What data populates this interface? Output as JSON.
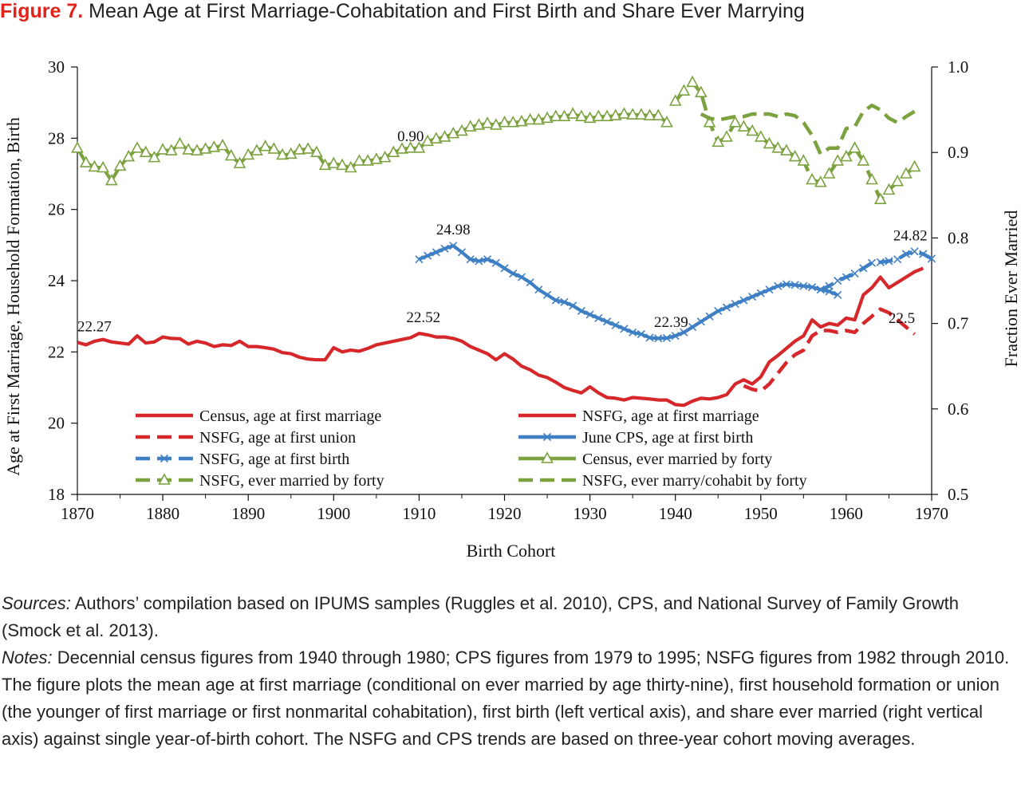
{
  "figure": {
    "label": "Figure 7.",
    "title": "Mean Age at First Marriage-Cohabitation and First Birth and Share Ever Marrying"
  },
  "chart_data": {
    "type": "line",
    "xlabel": "Birth Cohort",
    "ylabel_left": "Age at First Marriage, Household Formation, Birth",
    "ylabel_right": "Fraction Ever Married",
    "xlim": [
      1870,
      1970
    ],
    "ylim_left": [
      18,
      30
    ],
    "ylim_right": [
      0.5,
      1.0
    ],
    "x_ticks": [
      1870,
      1880,
      1890,
      1900,
      1910,
      1920,
      1930,
      1940,
      1950,
      1960,
      1970
    ],
    "y_ticks_left": [
      18,
      20,
      22,
      24,
      26,
      28,
      30
    ],
    "y_ticks_right": [
      "0.5",
      "0.6",
      "0.7",
      "0.8",
      "0.9",
      "1.0"
    ],
    "grid": false,
    "legend_position": "bottom-center",
    "annotations": [
      {
        "text": "22.27",
        "x": 1872,
        "y": 22.27,
        "axis": "left"
      },
      {
        "text": "22.52",
        "x": 1910.5,
        "y": 22.52,
        "axis": "left"
      },
      {
        "text": "24.98",
        "x": 1914,
        "y": 24.98,
        "axis": "left"
      },
      {
        "text": "22.39",
        "x": 1939.5,
        "y": 22.39,
        "axis": "left"
      },
      {
        "text": "24.82",
        "x": 1967.5,
        "y": 24.82,
        "axis": "left"
      },
      {
        "text": "22.5",
        "x": 1966.5,
        "y": 22.5,
        "axis": "left"
      },
      {
        "text": "0.90",
        "x": 1909,
        "y": 0.9,
        "axis": "right"
      }
    ],
    "series": [
      {
        "name": "Census, age at first marriage",
        "axis": "left",
        "color": "#d6282b",
        "style": "solid",
        "marker": "none",
        "x": [
          1870,
          1871,
          1872,
          1873,
          1874,
          1875,
          1876,
          1877,
          1878,
          1879,
          1880,
          1881,
          1882,
          1883,
          1884,
          1885,
          1886,
          1887,
          1888,
          1889,
          1890,
          1891,
          1892,
          1893,
          1894,
          1895,
          1896,
          1897,
          1898,
          1899,
          1900,
          1901,
          1902,
          1903,
          1904,
          1905,
          1906,
          1907,
          1908,
          1909,
          1910,
          1911,
          1912,
          1913,
          1914,
          1915,
          1916,
          1917,
          1918,
          1919,
          1920,
          1921,
          1922,
          1923,
          1924,
          1925,
          1926,
          1927,
          1928,
          1929,
          1930,
          1931,
          1932,
          1933,
          1934,
          1935,
          1936,
          1937,
          1938,
          1939,
          1940,
          1941,
          1942,
          1943,
          1944,
          1945,
          1946,
          1947,
          1948,
          1949,
          1950,
          1951,
          1952,
          1953,
          1954,
          1955,
          1956,
          1957,
          1958,
          1959,
          1960,
          1961,
          1962,
          1963,
          1964,
          1965,
          1966,
          1967,
          1968,
          1969
        ],
        "y": [
          22.27,
          22.2,
          22.3,
          22.35,
          22.28,
          22.25,
          22.22,
          22.45,
          22.25,
          22.28,
          22.42,
          22.38,
          22.37,
          22.22,
          22.3,
          22.25,
          22.15,
          22.2,
          22.18,
          22.3,
          22.15,
          22.15,
          22.12,
          22.08,
          21.98,
          21.95,
          21.85,
          21.8,
          21.78,
          21.78,
          22.12,
          22.0,
          22.05,
          22.02,
          22.1,
          22.2,
          22.25,
          22.3,
          22.35,
          22.4,
          22.52,
          22.48,
          22.42,
          22.42,
          22.38,
          22.3,
          22.15,
          22.05,
          21.95,
          21.78,
          21.95,
          21.8,
          21.6,
          21.5,
          21.35,
          21.28,
          21.15,
          21.0,
          20.92,
          20.85,
          21.02,
          20.85,
          20.72,
          20.7,
          20.65,
          20.72,
          20.7,
          20.68,
          20.65,
          20.65,
          20.52,
          20.5,
          20.62,
          20.7,
          20.68,
          20.72,
          20.8,
          21.1,
          21.22,
          21.1,
          21.3,
          21.72,
          21.9,
          22.1,
          22.3,
          22.45,
          22.9,
          22.7,
          22.8,
          22.75,
          22.95,
          22.9,
          23.6,
          23.8,
          24.1,
          23.8,
          23.95,
          24.1,
          24.25,
          24.35
        ]
      },
      {
        "name": "NSFG, age at first marriage",
        "axis": "left",
        "color": "#d6282b",
        "style": "solid",
        "marker": "none",
        "x": [],
        "y": []
      },
      {
        "name": "NSFG, age at first union",
        "axis": "left",
        "color": "#d6282b",
        "style": "dashed",
        "marker": "none",
        "x": [
          1948,
          1949,
          1950,
          1951,
          1952,
          1953,
          1954,
          1955,
          1956,
          1957,
          1958,
          1959,
          1960,
          1961,
          1962,
          1963,
          1964,
          1965,
          1966,
          1967,
          1968
        ],
        "y": [
          21.05,
          20.95,
          20.9,
          21.1,
          21.4,
          21.7,
          21.92,
          22.05,
          22.45,
          22.6,
          22.6,
          22.55,
          22.6,
          22.55,
          22.8,
          23.0,
          23.2,
          23.1,
          22.9,
          22.7,
          22.5
        ]
      },
      {
        "name": "June CPS, age at first birth",
        "axis": "left",
        "color": "#3f7fc4",
        "style": "solid",
        "marker": "x",
        "x": [
          1910,
          1911,
          1912,
          1913,
          1914,
          1915,
          1916,
          1917,
          1918,
          1919,
          1920,
          1921,
          1922,
          1923,
          1924,
          1925,
          1926,
          1927,
          1928,
          1929,
          1930,
          1931,
          1932,
          1933,
          1934,
          1935,
          1936,
          1937,
          1938,
          1939,
          1940,
          1941,
          1942,
          1943,
          1944,
          1945,
          1946,
          1947,
          1948,
          1949,
          1950,
          1951,
          1952,
          1953,
          1954,
          1955,
          1956,
          1957,
          1958,
          1959
        ],
        "y": [
          24.6,
          24.7,
          24.8,
          24.9,
          24.98,
          24.8,
          24.6,
          24.55,
          24.6,
          24.5,
          24.35,
          24.2,
          24.1,
          23.95,
          23.75,
          23.6,
          23.45,
          23.4,
          23.3,
          23.15,
          23.05,
          22.95,
          22.85,
          22.75,
          22.65,
          22.55,
          22.5,
          22.4,
          22.38,
          22.39,
          22.45,
          22.55,
          22.7,
          22.85,
          23.0,
          23.15,
          23.25,
          23.35,
          23.45,
          23.55,
          23.65,
          23.75,
          23.85,
          23.9,
          23.88,
          23.85,
          23.82,
          23.75,
          23.7,
          23.6
        ]
      },
      {
        "name": "NSFG, age at first birth",
        "axis": "left",
        "color": "#3f7fc4",
        "style": "dashed",
        "marker": "x",
        "x": [
          1957,
          1958,
          1959,
          1960,
          1961,
          1962,
          1963,
          1964,
          1965,
          1966,
          1967,
          1968,
          1969,
          1970
        ],
        "y": [
          23.75,
          23.85,
          24.0,
          24.1,
          24.2,
          24.35,
          24.5,
          24.52,
          24.55,
          24.6,
          24.75,
          24.82,
          24.75,
          24.62
        ]
      },
      {
        "name": "Census, ever married by forty",
        "axis": "right",
        "color": "#7ba23f",
        "style": "solid",
        "marker": "triangle",
        "x": [
          1870,
          1871,
          1872,
          1873,
          1874,
          1875,
          1876,
          1877,
          1878,
          1879,
          1880,
          1881,
          1882,
          1883,
          1884,
          1885,
          1886,
          1887,
          1888,
          1889,
          1890,
          1891,
          1892,
          1893,
          1894,
          1895,
          1896,
          1897,
          1898,
          1899,
          1900,
          1901,
          1902,
          1903,
          1904,
          1905,
          1906,
          1907,
          1908,
          1909,
          1910,
          1911,
          1912,
          1913,
          1914,
          1915,
          1916,
          1917,
          1918,
          1919,
          1920,
          1921,
          1922,
          1923,
          1924,
          1925,
          1926,
          1927,
          1928,
          1929,
          1930,
          1931,
          1932,
          1933,
          1934,
          1935,
          1936,
          1937,
          1938,
          1939
        ],
        "y": [
          0.905,
          0.888,
          0.883,
          0.882,
          0.867,
          0.884,
          0.895,
          0.905,
          0.9,
          0.894,
          0.903,
          0.902,
          0.91,
          0.903,
          0.902,
          0.904,
          0.906,
          0.908,
          0.896,
          0.887,
          0.897,
          0.902,
          0.907,
          0.904,
          0.897,
          0.898,
          0.903,
          0.904,
          0.9,
          0.885,
          0.887,
          0.885,
          0.882,
          0.89,
          0.89,
          0.892,
          0.894,
          0.9,
          0.904,
          0.905,
          0.905,
          0.913,
          0.916,
          0.918,
          0.922,
          0.925,
          0.93,
          0.932,
          0.934,
          0.932,
          0.935,
          0.935,
          0.936,
          0.938,
          0.938,
          0.94,
          0.942,
          0.942,
          0.945,
          0.942,
          0.94,
          0.942,
          0.942,
          0.943,
          0.945,
          0.944,
          0.944,
          0.943,
          0.943,
          0.935
        ]
      },
      {
        "name": "NSFG, ever married by forty",
        "axis": "right",
        "color": "#7ba23f",
        "style": "dashed",
        "marker": "triangle",
        "x": [
          1940,
          1941,
          1942,
          1943,
          1944,
          1945,
          1946,
          1947,
          1948,
          1949,
          1950,
          1951,
          1952,
          1953,
          1954,
          1955,
          1956,
          1957,
          1958,
          1959,
          1960,
          1961,
          1962,
          1963,
          1964,
          1965,
          1966,
          1967,
          1968
        ],
        "y": [
          0.96,
          0.972,
          0.982,
          0.97,
          0.935,
          0.912,
          0.918,
          0.935,
          0.93,
          0.925,
          0.918,
          0.91,
          0.905,
          0.902,
          0.895,
          0.89,
          0.868,
          0.865,
          0.875,
          0.89,
          0.895,
          0.905,
          0.89,
          0.868,
          0.845,
          0.856,
          0.866,
          0.875,
          0.883
        ]
      },
      {
        "name": "NSFG, ever marry/cohabit by forty",
        "axis": "right",
        "color": "#7ba23f",
        "style": "dashed",
        "marker": "none",
        "x": [
          1943,
          1944,
          1945,
          1946,
          1947,
          1948,
          1949,
          1950,
          1951,
          1952,
          1953,
          1954,
          1955,
          1956,
          1957,
          1958,
          1959,
          1960,
          1961,
          1962,
          1963,
          1964,
          1965,
          1966,
          1967,
          1968
        ],
        "y": [
          0.945,
          0.94,
          0.938,
          0.94,
          0.942,
          0.942,
          0.945,
          0.945,
          0.945,
          0.942,
          0.945,
          0.943,
          0.935,
          0.92,
          0.898,
          0.905,
          0.905,
          0.928,
          0.93,
          0.948,
          0.955,
          0.95,
          0.94,
          0.935,
          0.942,
          0.948
        ]
      }
    ]
  },
  "notes": {
    "sources_label": "Sources:",
    "sources_text": " Authors’ compilation based on IPUMS samples (Ruggles et al. 2010), CPS, and National Survey of Family Growth (Smock et al. 2013).",
    "notes_label": "Notes:",
    "notes_text": " Decennial census figures from 1940 through 1980; CPS figures from 1979 to 1995; NSFG figures from 1982 through 2010. The figure plots the mean age at first marriage (conditional on ever married by age thirty-nine), first household formation or union (the younger of first marriage or first nonmarital cohabitation), first birth (left vertical axis), and share ever married (right vertical axis) against single year-of-birth cohort. The NSFG and CPS trends are based on three-year cohort moving averages."
  }
}
